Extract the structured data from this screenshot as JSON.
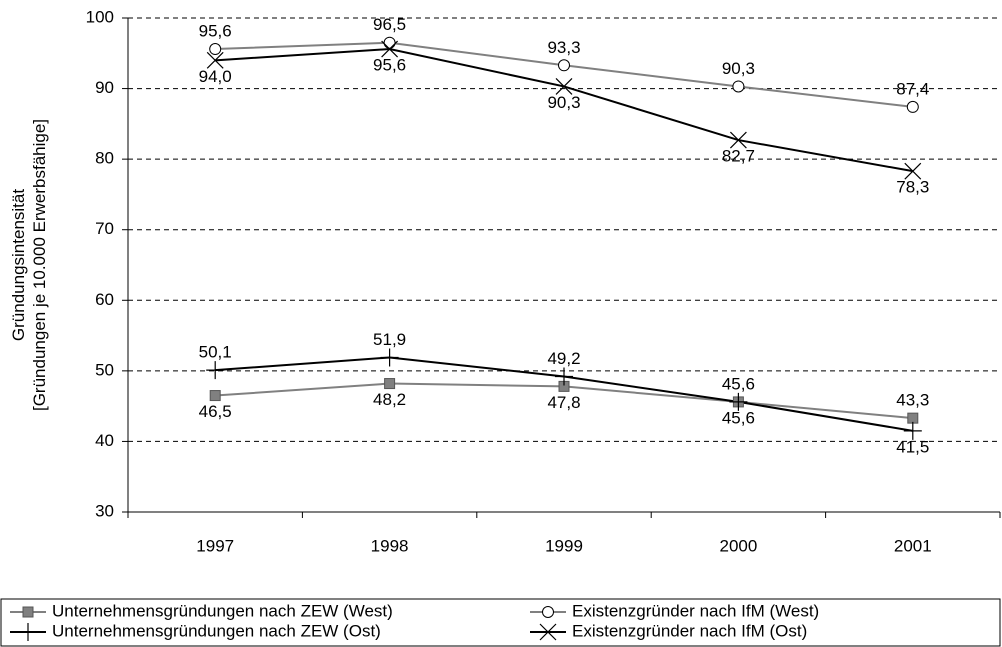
{
  "chart_data": {
    "type": "line",
    "y_label": [
      "Gründungsintensität",
      "[Gründungen je 10.000 Erwerbsfähige]"
    ],
    "categories": [
      "1997",
      "1998",
      "1999",
      "2000",
      "2001"
    ],
    "series": [
      {
        "name": "Unternehmensgründungen nach ZEW (West)",
        "color": "#808080",
        "marker": "square",
        "values": [
          46.5,
          48.2,
          47.8,
          45.6,
          43.3
        ],
        "value_labels": [
          "46,5",
          "48,2",
          "47,8",
          "45,6",
          "43,3"
        ]
      },
      {
        "name": "Existenzgründer nach IfM (West)",
        "color": "#808080",
        "marker": "circle",
        "values": [
          95.6,
          96.5,
          93.3,
          90.3,
          87.4
        ],
        "value_labels": [
          "95,6",
          "96,5",
          "93,3",
          "90,3",
          "87,4"
        ]
      },
      {
        "name": "Unternehmensgründungen nach ZEW (Ost)",
        "color": "#000000",
        "marker": "plus",
        "values": [
          50.1,
          51.9,
          49.2,
          45.6,
          41.5
        ],
        "value_labels": [
          "50,1",
          "51,9",
          "49,2",
          "45,6",
          "41,5"
        ]
      },
      {
        "name": "Existenzgründer nach IfM (Ost)",
        "color": "#000000",
        "marker": "x",
        "values": [
          94.0,
          95.6,
          90.3,
          82.7,
          78.3
        ],
        "value_labels": [
          "94,0",
          "95,6",
          "90,3",
          "82,7",
          "78,3"
        ]
      }
    ],
    "ylim": [
      30,
      100
    ],
    "yticks": [
      30,
      40,
      50,
      60,
      70,
      80,
      90,
      100
    ],
    "grid": true,
    "legend": "bottom"
  }
}
